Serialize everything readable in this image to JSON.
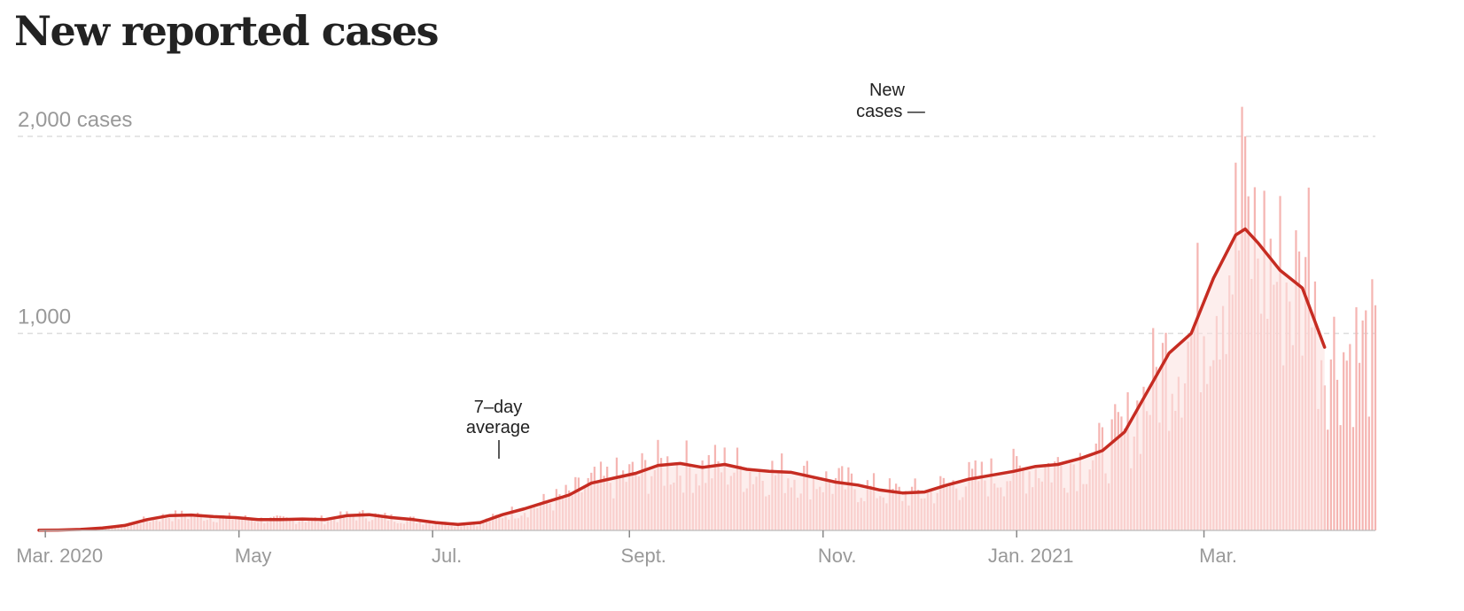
{
  "page": {
    "title": "New reported cases"
  },
  "colors": {
    "bar": "#f5b5b2",
    "area": "#fbe3e1",
    "line": "#c62c22",
    "text": "#222222",
    "axis": "#999999"
  },
  "chart_data": {
    "type": "bar",
    "title": "New reported cases",
    "x_range": [
      "2020-02-28",
      "2021-04-24"
    ],
    "ylim": [
      0,
      2150
    ],
    "grid": true,
    "y_ticks": [
      {
        "value": 1000,
        "label": "1,000"
      },
      {
        "value": 2000,
        "label": "2,000 cases"
      }
    ],
    "x_ticks": [
      {
        "date": "2020-03-01",
        "label": "Mar. 2020"
      },
      {
        "date": "2020-05-01",
        "label": "May"
      },
      {
        "date": "2020-07-01",
        "label": "Jul."
      },
      {
        "date": "2020-09-01",
        "label": "Sept."
      },
      {
        "date": "2020-11-01",
        "label": "Nov."
      },
      {
        "date": "2021-01-01",
        "label": "Jan. 2021"
      },
      {
        "date": "2021-03-01",
        "label": "Mar."
      }
    ],
    "series": [
      {
        "name": "7-day average",
        "role": "line",
        "points": [
          [
            "2020-02-28",
            1
          ],
          [
            "2020-03-05",
            2
          ],
          [
            "2020-03-12",
            5
          ],
          [
            "2020-03-19",
            12
          ],
          [
            "2020-03-26",
            25
          ],
          [
            "2020-04-02",
            55
          ],
          [
            "2020-04-09",
            75
          ],
          [
            "2020-04-16",
            78
          ],
          [
            "2020-04-23",
            70
          ],
          [
            "2020-04-30",
            65
          ],
          [
            "2020-05-07",
            55
          ],
          [
            "2020-05-14",
            55
          ],
          [
            "2020-05-21",
            58
          ],
          [
            "2020-05-28",
            55
          ],
          [
            "2020-06-04",
            75
          ],
          [
            "2020-06-11",
            80
          ],
          [
            "2020-06-18",
            65
          ],
          [
            "2020-06-25",
            55
          ],
          [
            "2020-07-02",
            40
          ],
          [
            "2020-07-09",
            30
          ],
          [
            "2020-07-16",
            40
          ],
          [
            "2020-07-23",
            80
          ],
          [
            "2020-07-30",
            110
          ],
          [
            "2020-08-06",
            145
          ],
          [
            "2020-08-13",
            180
          ],
          [
            "2020-08-20",
            240
          ],
          [
            "2020-08-27",
            265
          ],
          [
            "2020-09-03",
            290
          ],
          [
            "2020-09-10",
            330
          ],
          [
            "2020-09-17",
            340
          ],
          [
            "2020-09-24",
            320
          ],
          [
            "2020-10-01",
            335
          ],
          [
            "2020-10-08",
            310
          ],
          [
            "2020-10-15",
            300
          ],
          [
            "2020-10-22",
            295
          ],
          [
            "2020-10-29",
            270
          ],
          [
            "2020-11-05",
            245
          ],
          [
            "2020-11-12",
            230
          ],
          [
            "2020-11-19",
            205
          ],
          [
            "2020-11-26",
            190
          ],
          [
            "2020-12-03",
            195
          ],
          [
            "2020-12-10",
            230
          ],
          [
            "2020-12-17",
            260
          ],
          [
            "2020-12-24",
            280
          ],
          [
            "2020-12-31",
            300
          ],
          [
            "2021-01-07",
            325
          ],
          [
            "2021-01-14",
            335
          ],
          [
            "2021-01-21",
            365
          ],
          [
            "2021-01-28",
            405
          ],
          [
            "2021-02-04",
            500
          ],
          [
            "2021-02-11",
            700
          ],
          [
            "2021-02-18",
            900
          ],
          [
            "2021-02-25",
            1000
          ],
          [
            "2021-03-04",
            1280
          ],
          [
            "2021-03-11",
            1500
          ],
          [
            "2021-03-14",
            1530
          ],
          [
            "2021-03-18",
            1460
          ],
          [
            "2021-03-25",
            1320
          ],
          [
            "2021-04-01",
            1230
          ],
          [
            "2021-04-08",
            930
          ]
        ]
      }
    ],
    "annotations": [
      {
        "text_lines": [
          "New",
          "cases —"
        ],
        "refers_to": "daily bars"
      },
      {
        "text_lines": [
          "7–day",
          "average"
        ],
        "refers_to": "7-day average line"
      }
    ]
  }
}
